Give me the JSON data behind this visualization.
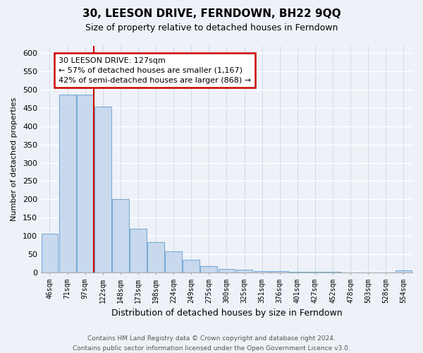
{
  "title": "30, LEESON DRIVE, FERNDOWN, BH22 9QQ",
  "subtitle": "Size of property relative to detached houses in Ferndown",
  "xlabel": "Distribution of detached houses by size in Ferndown",
  "ylabel": "Number of detached properties",
  "bar_labels": [
    "46sqm",
    "71sqm",
    "97sqm",
    "122sqm",
    "148sqm",
    "173sqm",
    "198sqm",
    "224sqm",
    "249sqm",
    "275sqm",
    "300sqm",
    "325sqm",
    "351sqm",
    "376sqm",
    "401sqm",
    "427sqm",
    "452sqm",
    "478sqm",
    "503sqm",
    "528sqm",
    "554sqm"
  ],
  "bar_values": [
    105,
    487,
    487,
    453,
    200,
    120,
    82,
    57,
    35,
    17,
    10,
    8,
    3,
    3,
    2,
    1,
    1,
    0,
    0,
    0,
    5
  ],
  "bar_color": "#c8d9ee",
  "bar_edge_color": "#7aaad4",
  "vline_x_index": 3,
  "vline_color": "#cc0000",
  "ylim": [
    0,
    620
  ],
  "yticks": [
    0,
    50,
    100,
    150,
    200,
    250,
    300,
    350,
    400,
    450,
    500,
    550,
    600
  ],
  "annotation_line1": "30 LEESON DRIVE: 127sqm",
  "annotation_line2": "← 57% of detached houses are smaller (1,167)",
  "annotation_line3": "42% of semi-detached houses are larger (868) →",
  "annotation_box_color": "#ffffff",
  "annotation_border_color": "#cc0000",
  "footer_line1": "Contains HM Land Registry data © Crown copyright and database right 2024.",
  "footer_line2": "Contains public sector information licensed under the Open Government Licence v3.0.",
  "background_color": "#eef2f8",
  "grid_color": "#d0d8e8"
}
